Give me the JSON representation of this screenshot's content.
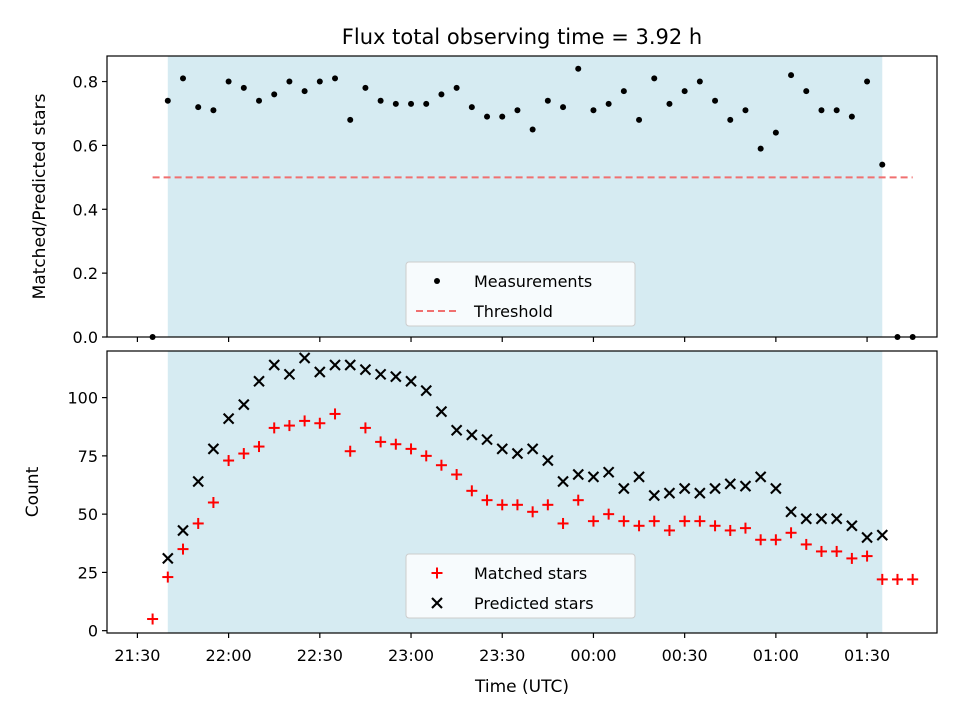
{
  "chart_data": {
    "title": "Flux total observing time = 3.92 h",
    "xlabel": "Time (UTC)",
    "x_tick_labels": [
      "21:30",
      "22:00",
      "22:30",
      "23:00",
      "23:30",
      "00:00",
      "00:30",
      "01:00",
      "01:30"
    ],
    "x_tick_times": [
      "21:30",
      "22:00",
      "22:30",
      "23:00",
      "23:30",
      "00:00",
      "00:30",
      "01:00",
      "01:30"
    ],
    "observing_window": {
      "start": "21:40",
      "end": "01:35",
      "color": "#add8e6"
    },
    "panels": [
      {
        "type": "scatter",
        "ylabel": "Matched/Predicted stars",
        "ylim": [
          0,
          0.88
        ],
        "y_ticks": [
          "0.0",
          "0.2",
          "0.4",
          "0.6",
          "0.8"
        ],
        "y_tick_values": [
          0,
          0.2,
          0.4,
          0.6,
          0.8
        ],
        "legend_position": "lower-center",
        "threshold": {
          "name": "Threshold",
          "value": 0.5,
          "x_start": "21:35",
          "x_end": "01:45",
          "color": "#f07070"
        },
        "series": [
          {
            "name": "Measurements",
            "marker": "dot",
            "color": "#000000",
            "x": [
              "21:35",
              "21:40",
              "21:45",
              "21:50",
              "21:55",
              "22:00",
              "22:05",
              "22:10",
              "22:15",
              "22:20",
              "22:25",
              "22:30",
              "22:35",
              "22:40",
              "22:45",
              "22:50",
              "22:55",
              "23:00",
              "23:05",
              "23:10",
              "23:15",
              "23:20",
              "23:25",
              "23:30",
              "23:35",
              "23:40",
              "23:45",
              "23:50",
              "23:55",
              "00:00",
              "00:05",
              "00:10",
              "00:15",
              "00:20",
              "00:25",
              "00:30",
              "00:35",
              "00:40",
              "00:45",
              "00:50",
              "00:55",
              "01:00",
              "01:05",
              "01:10",
              "01:15",
              "01:20",
              "01:25",
              "01:30",
              "01:35",
              "01:40",
              "01:45"
            ],
            "values": [
              0.0,
              0.74,
              0.81,
              0.72,
              0.71,
              0.8,
              0.78,
              0.74,
              0.76,
              0.8,
              0.77,
              0.8,
              0.81,
              0.68,
              0.78,
              0.74,
              0.73,
              0.73,
              0.73,
              0.76,
              0.78,
              0.72,
              0.69,
              0.69,
              0.71,
              0.65,
              0.74,
              0.72,
              0.84,
              0.71,
              0.73,
              0.77,
              0.68,
              0.81,
              0.73,
              0.77,
              0.8,
              0.74,
              0.68,
              0.71,
              0.59,
              0.64,
              0.82,
              0.77,
              0.71,
              0.71,
              0.69,
              0.8,
              0.54,
              0.0,
              0.0
            ]
          }
        ]
      },
      {
        "type": "scatter",
        "ylabel": "Count",
        "ylim": [
          -1,
          120
        ],
        "y_ticks": [
          "0",
          "25",
          "50",
          "75",
          "100"
        ],
        "y_tick_values": [
          0,
          25,
          50,
          75,
          100
        ],
        "legend_position": "lower-center",
        "series": [
          {
            "name": "Matched stars",
            "marker": "plus",
            "color": "#ff0000",
            "x": [
              "21:35",
              "21:40",
              "21:45",
              "21:50",
              "21:55",
              "22:00",
              "22:05",
              "22:10",
              "22:15",
              "22:20",
              "22:25",
              "22:30",
              "22:35",
              "22:40",
              "22:45",
              "22:50",
              "22:55",
              "23:00",
              "23:05",
              "23:10",
              "23:15",
              "23:20",
              "23:25",
              "23:30",
              "23:35",
              "23:40",
              "23:45",
              "23:50",
              "23:55",
              "00:00",
              "00:05",
              "00:10",
              "00:15",
              "00:20",
              "00:25",
              "00:30",
              "00:35",
              "00:40",
              "00:45",
              "00:50",
              "00:55",
              "01:00",
              "01:05",
              "01:10",
              "01:15",
              "01:20",
              "01:25",
              "01:30",
              "01:35",
              "01:40",
              "01:45"
            ],
            "values": [
              5,
              23,
              35,
              46,
              55,
              73,
              76,
              79,
              87,
              88,
              90,
              89,
              93,
              77,
              87,
              81,
              80,
              78,
              75,
              71,
              67,
              60,
              56,
              54,
              54,
              51,
              54,
              46,
              56,
              47,
              50,
              47,
              45,
              47,
              43,
              47,
              47,
              45,
              43,
              44,
              39,
              39,
              42,
              37,
              34,
              34,
              31,
              32,
              22,
              22,
              22
            ]
          },
          {
            "name": "Predicted stars",
            "marker": "x",
            "color": "#000000",
            "x": [
              "21:40",
              "21:45",
              "21:50",
              "21:55",
              "22:00",
              "22:05",
              "22:10",
              "22:15",
              "22:20",
              "22:25",
              "22:30",
              "22:35",
              "22:40",
              "22:45",
              "22:50",
              "22:55",
              "23:00",
              "23:05",
              "23:10",
              "23:15",
              "23:20",
              "23:25",
              "23:30",
              "23:35",
              "23:40",
              "23:45",
              "23:50",
              "23:55",
              "00:00",
              "00:05",
              "00:10",
              "00:15",
              "00:20",
              "00:25",
              "00:30",
              "00:35",
              "00:40",
              "00:45",
              "00:50",
              "00:55",
              "01:00",
              "01:05",
              "01:10",
              "01:15",
              "01:20",
              "01:25",
              "01:30",
              "01:35"
            ],
            "values": [
              31,
              43,
              64,
              78,
              91,
              97,
              107,
              114,
              110,
              117,
              111,
              114,
              114,
              112,
              110,
              109,
              107,
              103,
              94,
              86,
              84,
              82,
              78,
              76,
              78,
              73,
              64,
              67,
              66,
              68,
              61,
              66,
              58,
              59,
              61,
              59,
              61,
              63,
              62,
              66,
              61,
              51,
              48,
              48,
              48,
              45,
              40,
              41
            ]
          }
        ]
      }
    ]
  }
}
